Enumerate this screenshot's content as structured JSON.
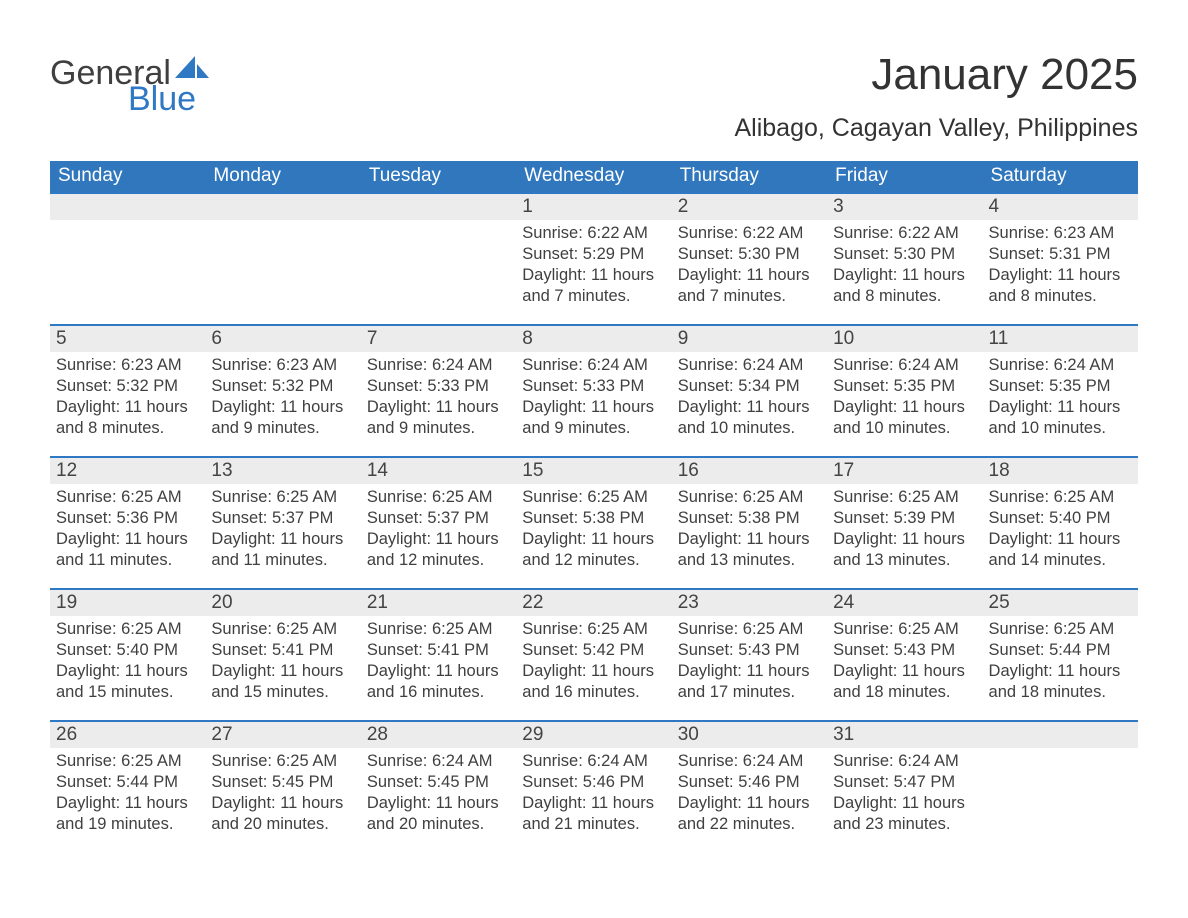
{
  "colors": {
    "header_bg": "#3077bd",
    "header_text": "#ffffff",
    "week_border": "#2f78c3",
    "daynum_band_bg": "#ececec",
    "body_text": "#404040",
    "title_text": "#333333",
    "logo_gray": "#3f3f3f",
    "logo_blue": "#2f78c3",
    "page_bg": "#ffffff"
  },
  "typography": {
    "month_title_pt": 44,
    "location_pt": 25,
    "dow_pt": 19,
    "daynum_pt": 19,
    "body_pt": 16.5,
    "font_family": "Arial"
  },
  "logo": {
    "word1": "General",
    "word2": "Blue"
  },
  "title": "January 2025",
  "location": "Alibago, Cagayan Valley, Philippines",
  "dow": [
    "Sunday",
    "Monday",
    "Tuesday",
    "Wednesday",
    "Thursday",
    "Friday",
    "Saturday"
  ],
  "weeks": [
    [
      {
        "n": "",
        "sr": "",
        "ss": "",
        "dl": ""
      },
      {
        "n": "",
        "sr": "",
        "ss": "",
        "dl": ""
      },
      {
        "n": "",
        "sr": "",
        "ss": "",
        "dl": ""
      },
      {
        "n": "1",
        "sr": "Sunrise: 6:22 AM",
        "ss": "Sunset: 5:29 PM",
        "dl": "Daylight: 11 hours and 7 minutes."
      },
      {
        "n": "2",
        "sr": "Sunrise: 6:22 AM",
        "ss": "Sunset: 5:30 PM",
        "dl": "Daylight: 11 hours and 7 minutes."
      },
      {
        "n": "3",
        "sr": "Sunrise: 6:22 AM",
        "ss": "Sunset: 5:30 PM",
        "dl": "Daylight: 11 hours and 8 minutes."
      },
      {
        "n": "4",
        "sr": "Sunrise: 6:23 AM",
        "ss": "Sunset: 5:31 PM",
        "dl": "Daylight: 11 hours and 8 minutes."
      }
    ],
    [
      {
        "n": "5",
        "sr": "Sunrise: 6:23 AM",
        "ss": "Sunset: 5:32 PM",
        "dl": "Daylight: 11 hours and 8 minutes."
      },
      {
        "n": "6",
        "sr": "Sunrise: 6:23 AM",
        "ss": "Sunset: 5:32 PM",
        "dl": "Daylight: 11 hours and 9 minutes."
      },
      {
        "n": "7",
        "sr": "Sunrise: 6:24 AM",
        "ss": "Sunset: 5:33 PM",
        "dl": "Daylight: 11 hours and 9 minutes."
      },
      {
        "n": "8",
        "sr": "Sunrise: 6:24 AM",
        "ss": "Sunset: 5:33 PM",
        "dl": "Daylight: 11 hours and 9 minutes."
      },
      {
        "n": "9",
        "sr": "Sunrise: 6:24 AM",
        "ss": "Sunset: 5:34 PM",
        "dl": "Daylight: 11 hours and 10 minutes."
      },
      {
        "n": "10",
        "sr": "Sunrise: 6:24 AM",
        "ss": "Sunset: 5:35 PM",
        "dl": "Daylight: 11 hours and 10 minutes."
      },
      {
        "n": "11",
        "sr": "Sunrise: 6:24 AM",
        "ss": "Sunset: 5:35 PM",
        "dl": "Daylight: 11 hours and 10 minutes."
      }
    ],
    [
      {
        "n": "12",
        "sr": "Sunrise: 6:25 AM",
        "ss": "Sunset: 5:36 PM",
        "dl": "Daylight: 11 hours and 11 minutes."
      },
      {
        "n": "13",
        "sr": "Sunrise: 6:25 AM",
        "ss": "Sunset: 5:37 PM",
        "dl": "Daylight: 11 hours and 11 minutes."
      },
      {
        "n": "14",
        "sr": "Sunrise: 6:25 AM",
        "ss": "Sunset: 5:37 PM",
        "dl": "Daylight: 11 hours and 12 minutes."
      },
      {
        "n": "15",
        "sr": "Sunrise: 6:25 AM",
        "ss": "Sunset: 5:38 PM",
        "dl": "Daylight: 11 hours and 12 minutes."
      },
      {
        "n": "16",
        "sr": "Sunrise: 6:25 AM",
        "ss": "Sunset: 5:38 PM",
        "dl": "Daylight: 11 hours and 13 minutes."
      },
      {
        "n": "17",
        "sr": "Sunrise: 6:25 AM",
        "ss": "Sunset: 5:39 PM",
        "dl": "Daylight: 11 hours and 13 minutes."
      },
      {
        "n": "18",
        "sr": "Sunrise: 6:25 AM",
        "ss": "Sunset: 5:40 PM",
        "dl": "Daylight: 11 hours and 14 minutes."
      }
    ],
    [
      {
        "n": "19",
        "sr": "Sunrise: 6:25 AM",
        "ss": "Sunset: 5:40 PM",
        "dl": "Daylight: 11 hours and 15 minutes."
      },
      {
        "n": "20",
        "sr": "Sunrise: 6:25 AM",
        "ss": "Sunset: 5:41 PM",
        "dl": "Daylight: 11 hours and 15 minutes."
      },
      {
        "n": "21",
        "sr": "Sunrise: 6:25 AM",
        "ss": "Sunset: 5:41 PM",
        "dl": "Daylight: 11 hours and 16 minutes."
      },
      {
        "n": "22",
        "sr": "Sunrise: 6:25 AM",
        "ss": "Sunset: 5:42 PM",
        "dl": "Daylight: 11 hours and 16 minutes."
      },
      {
        "n": "23",
        "sr": "Sunrise: 6:25 AM",
        "ss": "Sunset: 5:43 PM",
        "dl": "Daylight: 11 hours and 17 minutes."
      },
      {
        "n": "24",
        "sr": "Sunrise: 6:25 AM",
        "ss": "Sunset: 5:43 PM",
        "dl": "Daylight: 11 hours and 18 minutes."
      },
      {
        "n": "25",
        "sr": "Sunrise: 6:25 AM",
        "ss": "Sunset: 5:44 PM",
        "dl": "Daylight: 11 hours and 18 minutes."
      }
    ],
    [
      {
        "n": "26",
        "sr": "Sunrise: 6:25 AM",
        "ss": "Sunset: 5:44 PM",
        "dl": "Daylight: 11 hours and 19 minutes."
      },
      {
        "n": "27",
        "sr": "Sunrise: 6:25 AM",
        "ss": "Sunset: 5:45 PM",
        "dl": "Daylight: 11 hours and 20 minutes."
      },
      {
        "n": "28",
        "sr": "Sunrise: 6:24 AM",
        "ss": "Sunset: 5:45 PM",
        "dl": "Daylight: 11 hours and 20 minutes."
      },
      {
        "n": "29",
        "sr": "Sunrise: 6:24 AM",
        "ss": "Sunset: 5:46 PM",
        "dl": "Daylight: 11 hours and 21 minutes."
      },
      {
        "n": "30",
        "sr": "Sunrise: 6:24 AM",
        "ss": "Sunset: 5:46 PM",
        "dl": "Daylight: 11 hours and 22 minutes."
      },
      {
        "n": "31",
        "sr": "Sunrise: 6:24 AM",
        "ss": "Sunset: 5:47 PM",
        "dl": "Daylight: 11 hours and 23 minutes."
      },
      {
        "n": "",
        "sr": "",
        "ss": "",
        "dl": ""
      }
    ]
  ]
}
